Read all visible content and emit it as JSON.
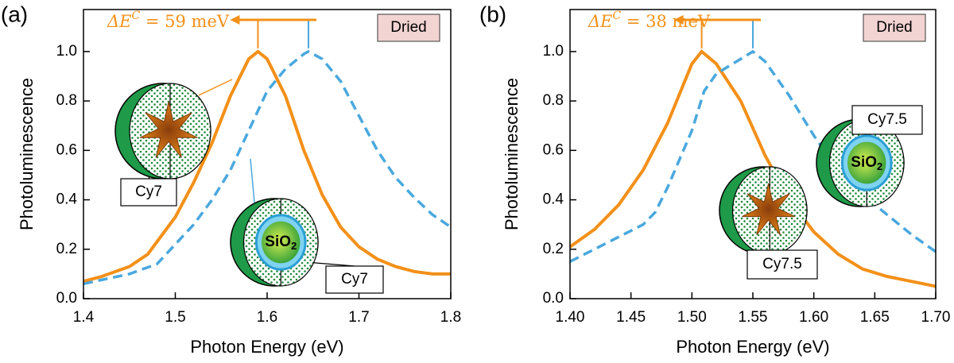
{
  "chart_data": [
    {
      "type": "line",
      "panel_label": "(a)",
      "xlabel": "Photon Energy (eV)",
      "ylabel": "Photoluminescence",
      "xlim": [
        1.4,
        1.8
      ],
      "xticks": [
        1.4,
        1.5,
        1.6,
        1.7,
        1.8
      ],
      "ylim": [
        0,
        1.17
      ],
      "yticks": [
        {
          "value": 0,
          "label": "0.0"
        },
        0.2,
        0.4,
        0.6,
        0.8,
        {
          "value": 1,
          "label": "1.0"
        }
      ],
      "series": [
        {
          "color": "#f39019",
          "dash": false,
          "x": [
            1.4,
            1.42,
            1.45,
            1.47,
            1.5,
            1.52,
            1.54,
            1.56,
            1.58,
            1.59,
            1.6,
            1.62,
            1.64,
            1.66,
            1.68,
            1.7,
            1.72,
            1.74,
            1.76,
            1.78,
            1.8
          ],
          "values": [
            0.07,
            0.09,
            0.13,
            0.18,
            0.33,
            0.47,
            0.63,
            0.82,
            0.97,
            1.0,
            0.97,
            0.82,
            0.6,
            0.42,
            0.29,
            0.21,
            0.16,
            0.13,
            0.11,
            0.1,
            0.1
          ]
        },
        {
          "color": "#4aa8de",
          "dash": true,
          "x": [
            1.4,
            1.45,
            1.48,
            1.5,
            1.52,
            1.54,
            1.56,
            1.58,
            1.6,
            1.62,
            1.64,
            1.645,
            1.66,
            1.68,
            1.7,
            1.72,
            1.74,
            1.76,
            1.78,
            1.8
          ],
          "values": [
            0.06,
            0.1,
            0.14,
            0.22,
            0.3,
            0.4,
            0.52,
            0.68,
            0.84,
            0.93,
            0.99,
            1.0,
            0.97,
            0.88,
            0.74,
            0.6,
            0.49,
            0.41,
            0.34,
            0.29
          ]
        }
      ],
      "annotations": {
        "delta": [
          "ΔE",
          "C",
          " = 59 meV"
        ],
        "badge": "Dried",
        "labels": [
          "Cy7",
          "Cy7"
        ],
        "core": [
          "SiO",
          "2"
        ]
      }
    },
    {
      "type": "line",
      "panel_label": "(b)",
      "xlabel": "Photon Energy (eV)",
      "ylabel": "Photoluminescence",
      "xlim": [
        1.4,
        1.7
      ],
      "xticks": [
        {
          "value": 1.4,
          "label": "1.40"
        },
        1.45,
        {
          "value": 1.5,
          "label": "1.50"
        },
        1.55,
        {
          "value": 1.6,
          "label": "1.60"
        },
        1.65,
        {
          "value": 1.7,
          "label": "1.70"
        }
      ],
      "ylim": [
        0,
        1.17
      ],
      "yticks": [
        {
          "value": 0,
          "label": "0.0"
        },
        0.2,
        0.4,
        0.6,
        0.8,
        {
          "value": 1,
          "label": "1.0"
        }
      ],
      "series": [
        {
          "color": "#f39019",
          "dash": false,
          "x": [
            1.4,
            1.42,
            1.44,
            1.46,
            1.48,
            1.5,
            1.508,
            1.52,
            1.54,
            1.56,
            1.58,
            1.6,
            1.62,
            1.64,
            1.66,
            1.68,
            1.7
          ],
          "values": [
            0.21,
            0.28,
            0.38,
            0.52,
            0.71,
            0.95,
            1.0,
            0.95,
            0.8,
            0.58,
            0.4,
            0.27,
            0.18,
            0.12,
            0.09,
            0.07,
            0.05
          ]
        },
        {
          "color": "#4aa8de",
          "dash": true,
          "x": [
            1.4,
            1.42,
            1.44,
            1.46,
            1.47,
            1.48,
            1.5,
            1.51,
            1.52,
            1.54,
            1.55,
            1.56,
            1.58,
            1.6,
            1.62,
            1.64,
            1.66,
            1.68,
            1.7
          ],
          "values": [
            0.15,
            0.2,
            0.25,
            0.3,
            0.35,
            0.45,
            0.68,
            0.84,
            0.91,
            0.97,
            1.0,
            0.96,
            0.82,
            0.66,
            0.52,
            0.42,
            0.34,
            0.26,
            0.19
          ]
        }
      ],
      "annotations": {
        "delta": [
          "ΔE",
          "C",
          " = 38 meV"
        ],
        "badge": "Dried",
        "labels": [
          "Cy7.5",
          "Cy7.5"
        ],
        "core": [
          "SiO",
          "2"
        ]
      }
    }
  ]
}
